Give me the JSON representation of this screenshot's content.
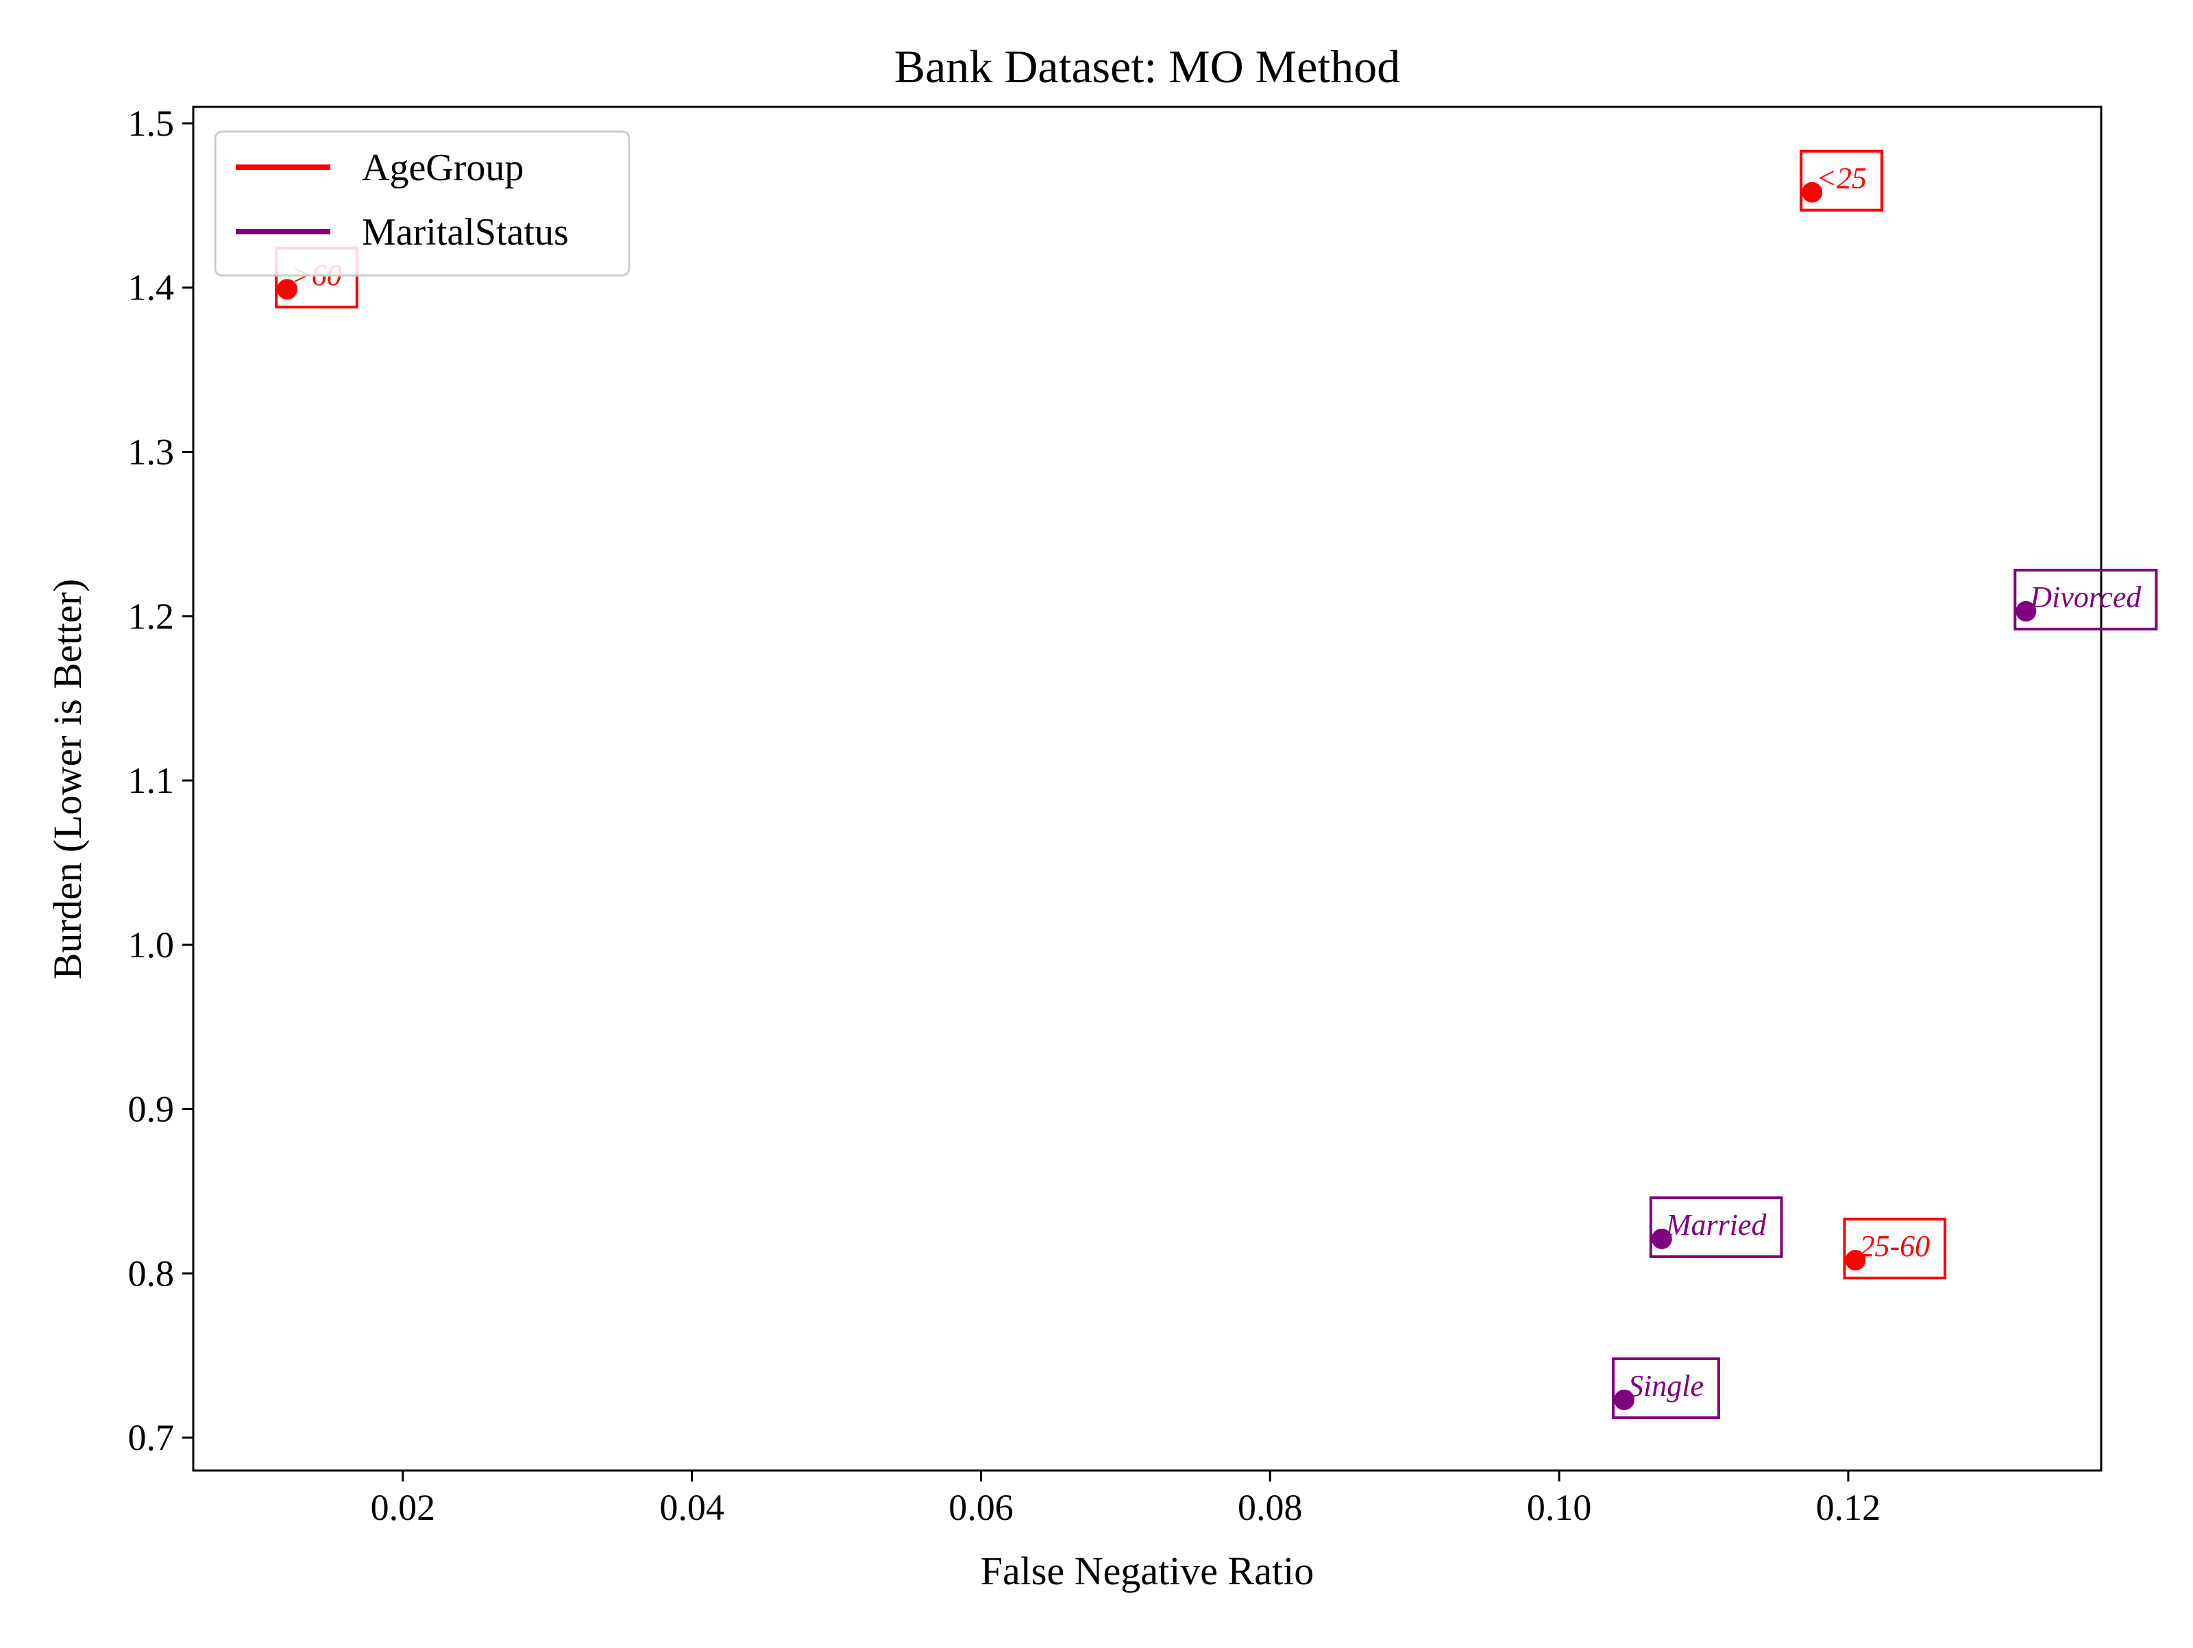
{
  "chart_data": {
    "type": "scatter",
    "title": "Bank Dataset: MO Method",
    "xlabel": "False Negative Ratio",
    "ylabel": "Burden (Lower is Better)",
    "xlim": [
      0.0055,
      0.1375
    ],
    "ylim": [
      0.68,
      1.51
    ],
    "xticks": [
      0.02,
      0.04,
      0.06,
      0.08,
      0.1,
      0.12
    ],
    "xtick_labels": [
      "0.02",
      "0.04",
      "0.06",
      "0.08",
      "0.10",
      "0.12"
    ],
    "yticks": [
      0.7,
      0.8,
      0.9,
      1.0,
      1.1,
      1.2,
      1.3,
      1.4,
      1.5
    ],
    "ytick_labels": [
      "0.7",
      "0.8",
      "0.9",
      "1.0",
      "1.1",
      "1.2",
      "1.3",
      "1.4",
      "1.5"
    ],
    "grid": false,
    "legend_position": "top-left",
    "series": [
      {
        "name": "AgeGroup",
        "color": "#ff0000",
        "points": [
          {
            "label": "<25",
            "x": 0.1175,
            "y": 1.458
          },
          {
            "label": ">60",
            "x": 0.012,
            "y": 1.399
          },
          {
            "label": "25-60",
            "x": 0.1205,
            "y": 0.808
          }
        ]
      },
      {
        "name": "MaritalStatus",
        "color": "#800080",
        "points": [
          {
            "label": "Divorced",
            "x": 0.1323,
            "y": 1.203
          },
          {
            "label": "Married",
            "x": 0.1071,
            "y": 0.821
          },
          {
            "label": "Single",
            "x": 0.1045,
            "y": 0.723
          }
        ]
      }
    ]
  }
}
